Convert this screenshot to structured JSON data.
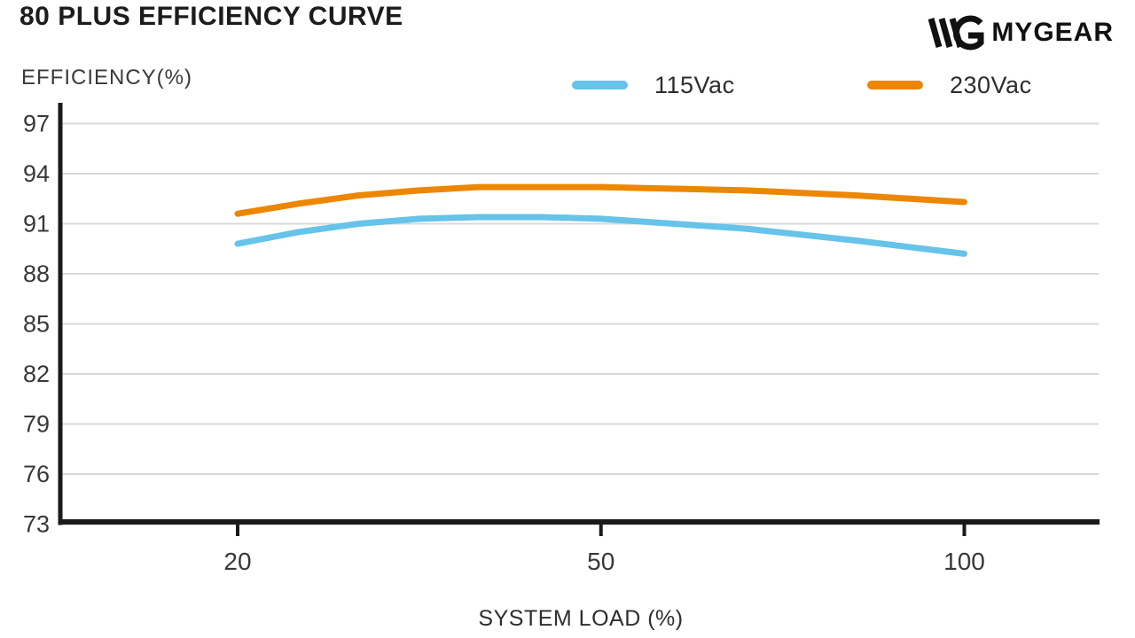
{
  "header": {
    "title": "80 PLUS EFFICIENCY CURVE"
  },
  "brand": {
    "logo_text": "MYGEAR"
  },
  "chart_data": {
    "type": "line",
    "title": "80 PLUS EFFICIENCY CURVE",
    "xlabel": "SYSTEM LOAD (%)",
    "ylabel": "EFFICIENCY(%)",
    "x_ticks": [
      20,
      50,
      100
    ],
    "y_ticks": [
      73,
      76,
      79,
      82,
      85,
      88,
      91,
      94,
      97
    ],
    "ylim": [
      73,
      98
    ],
    "grid": "horizontal",
    "legend_position": "top",
    "axis_color": "#1a1a1a",
    "grid_color": "#d8d8d8",
    "tick_text_color": "#383838",
    "x": [
      20,
      25,
      30,
      35,
      40,
      45,
      50,
      60,
      70,
      85,
      100
    ],
    "series": [
      {
        "name": "115Vac",
        "color": "#66c3ea",
        "values": [
          89.8,
          90.5,
          91.0,
          91.3,
          91.4,
          91.4,
          91.3,
          91.0,
          90.7,
          90.0,
          89.2
        ]
      },
      {
        "name": "230Vac",
        "color": "#ed8600",
        "values": [
          91.6,
          92.2,
          92.7,
          93.0,
          93.2,
          93.2,
          93.2,
          93.1,
          93.0,
          92.7,
          92.3
        ]
      }
    ]
  }
}
